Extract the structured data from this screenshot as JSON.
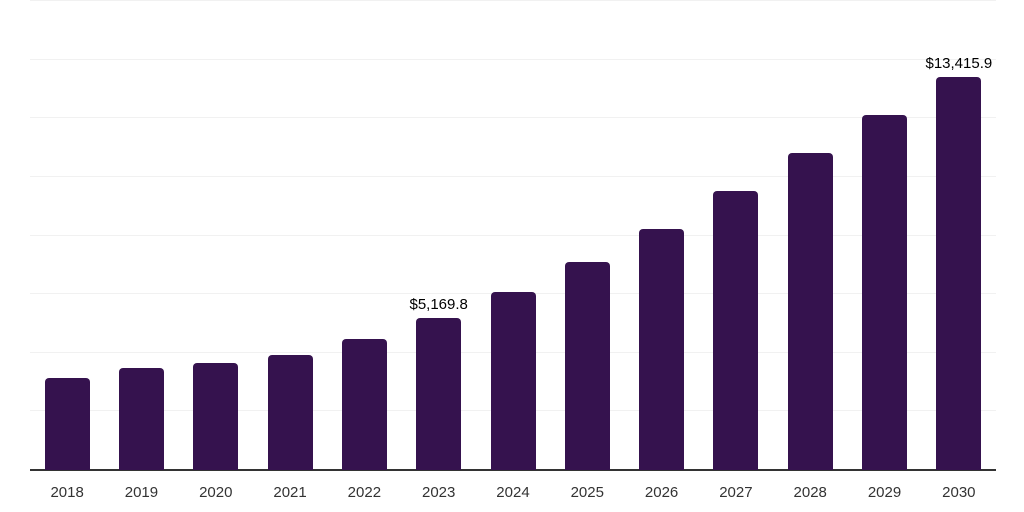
{
  "chart_data": {
    "type": "bar",
    "title": "",
    "xlabel": "",
    "ylabel": "",
    "categories": [
      "2018",
      "2019",
      "2020",
      "2021",
      "2022",
      "2023",
      "2024",
      "2025",
      "2026",
      "2027",
      "2028",
      "2029",
      "2030"
    ],
    "values": [
      3130,
      3490,
      3655,
      3915,
      4460,
      5169.8,
      6090,
      7090,
      8230,
      9510,
      10800,
      12100,
      13415.9
    ],
    "value_labels": {
      "2023": "$5,169.8",
      "2030": "$13,415.9"
    },
    "ylim": [
      0,
      16000
    ],
    "gridline_step": 2000,
    "grid": true,
    "legend": "none",
    "y_axis_labels_visible": false
  },
  "style": {
    "bar_color": "#35124E",
    "grid_color": "#f1f1f1",
    "axis_color": "#333333",
    "tick_label_color": "#333333",
    "value_label_color": "#000000",
    "background_color": "#ffffff"
  }
}
